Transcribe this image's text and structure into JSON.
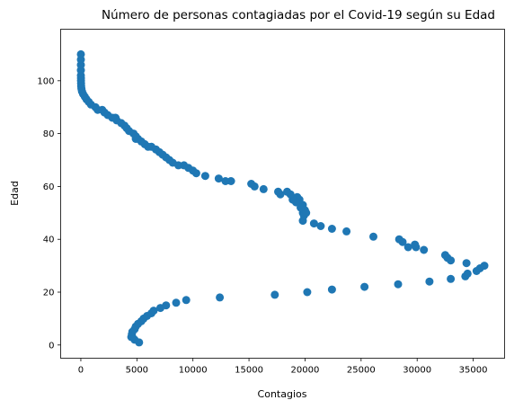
{
  "chart_data": {
    "type": "scatter",
    "title": "Número de personas contagiadas por el Covid-19 según su Edad",
    "xlabel": "Contagios",
    "ylabel": "Edad",
    "xlim": [
      -1800,
      37800
    ],
    "ylim": [
      -5,
      119.5
    ],
    "xticks": [
      0,
      5000,
      10000,
      15000,
      20000,
      25000,
      30000,
      35000
    ],
    "yticks": [
      0,
      20,
      40,
      60,
      80,
      100
    ],
    "grid": false,
    "color": "#1f77b4",
    "x": [
      5200,
      4800,
      4600,
      4550,
      4500,
      4600,
      4800,
      4900,
      5100,
      5400,
      5600,
      5900,
      6300,
      6500,
      7100,
      7600,
      8500,
      9400,
      12400,
      17300,
      20200,
      22400,
      25300,
      28300,
      31100,
      33000,
      34300,
      34500,
      35300,
      35600,
      36000,
      34400,
      33000,
      32700,
      32500,
      30600,
      29900,
      29800,
      29200,
      28700,
      28400,
      26100,
      23700,
      22400,
      21400,
      20800,
      19800,
      19900,
      19800,
      20000,
      20100,
      19800,
      19600,
      19500,
      19300,
      19200,
      18900,
      18700,
      18400,
      17800,
      17600,
      16300,
      15500,
      15200,
      13400,
      12900,
      12300,
      11100,
      10300,
      10000,
      9600,
      9200,
      8700,
      8200,
      7900,
      7600,
      7300,
      7000,
      6700,
      6300,
      6000,
      5700,
      5400,
      5100,
      4900,
      4900,
      4700,
      4300,
      4100,
      3900,
      3600,
      3200,
      3100,
      2800,
      2400,
      2100,
      1900,
      1500,
      1300,
      900,
      700,
      500,
      350,
      200,
      100,
      50,
      30,
      20,
      10,
      10,
      5,
      0,
      0,
      0,
      0
    ],
    "y": [
      1,
      2,
      3,
      4,
      3,
      5,
      6,
      7,
      8,
      9,
      10,
      11,
      12,
      13,
      14,
      15,
      16,
      17,
      18,
      19,
      20,
      21,
      22,
      23,
      24,
      25,
      26,
      27,
      28,
      29,
      30,
      31,
      32,
      33,
      34,
      36,
      37,
      38,
      37,
      39,
      40,
      41,
      43,
      44,
      45,
      46,
      47,
      49,
      50,
      51,
      50,
      53,
      52,
      55,
      56,
      54,
      55,
      57,
      58,
      57,
      58,
      59,
      60,
      61,
      62,
      62,
      63,
      64,
      65,
      66,
      67,
      68,
      68,
      69,
      70,
      71,
      72,
      73,
      74,
      75,
      75,
      76,
      77,
      78,
      78,
      79,
      80,
      81,
      82,
      83,
      84,
      85,
      86,
      86,
      87,
      88,
      89,
      89,
      90,
      91,
      92,
      93,
      94,
      95,
      96,
      97,
      98,
      99,
      100,
      101,
      102,
      104,
      106,
      108,
      110
    ]
  }
}
